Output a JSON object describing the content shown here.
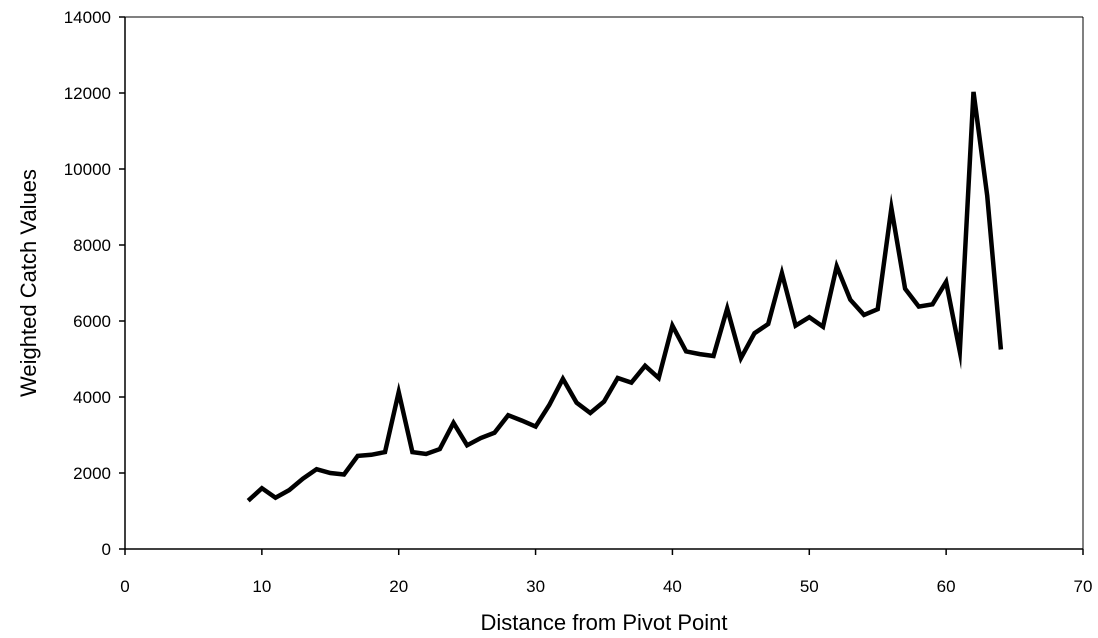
{
  "chart_data": {
    "type": "line",
    "title": "",
    "xlabel": "Distance from Pivot Point",
    "ylabel": "Weighted Catch Values",
    "xlim": [
      0,
      70
    ],
    "ylim": [
      0,
      14000
    ],
    "x_ticks": [
      0,
      10,
      20,
      30,
      40,
      50,
      60,
      70
    ],
    "y_ticks": [
      0,
      2000,
      4000,
      6000,
      8000,
      10000,
      12000,
      14000
    ],
    "grid": false,
    "legend": "none",
    "line_color": "#000000",
    "series": [
      {
        "x": [
          9,
          10,
          11,
          12,
          13,
          14,
          15,
          16,
          17,
          18,
          19,
          20,
          21,
          22,
          23,
          24,
          25,
          26,
          27,
          28,
          29,
          30,
          31,
          32,
          33,
          34,
          35,
          36,
          37,
          38,
          39,
          40,
          41,
          42,
          43,
          44,
          45,
          46,
          47,
          48,
          49,
          50,
          51,
          52,
          53,
          54,
          55,
          56,
          57,
          58,
          59,
          60,
          61,
          62,
          63,
          64
        ],
        "values": [
          1270,
          1600,
          1350,
          1550,
          1850,
          2100,
          2000,
          1960,
          2450,
          2480,
          2550,
          4130,
          2550,
          2500,
          2630,
          3320,
          2730,
          2920,
          3060,
          3520,
          3380,
          3220,
          3790,
          4480,
          3850,
          3580,
          3880,
          4500,
          4380,
          4820,
          4500,
          5880,
          5200,
          5130,
          5080,
          6330,
          5020,
          5680,
          5920,
          7260,
          5880,
          6100,
          5850,
          7440,
          6560,
          6160,
          6310,
          8970,
          6850,
          6380,
          6440,
          7030,
          5200,
          12030,
          9300,
          5250
        ]
      }
    ]
  }
}
